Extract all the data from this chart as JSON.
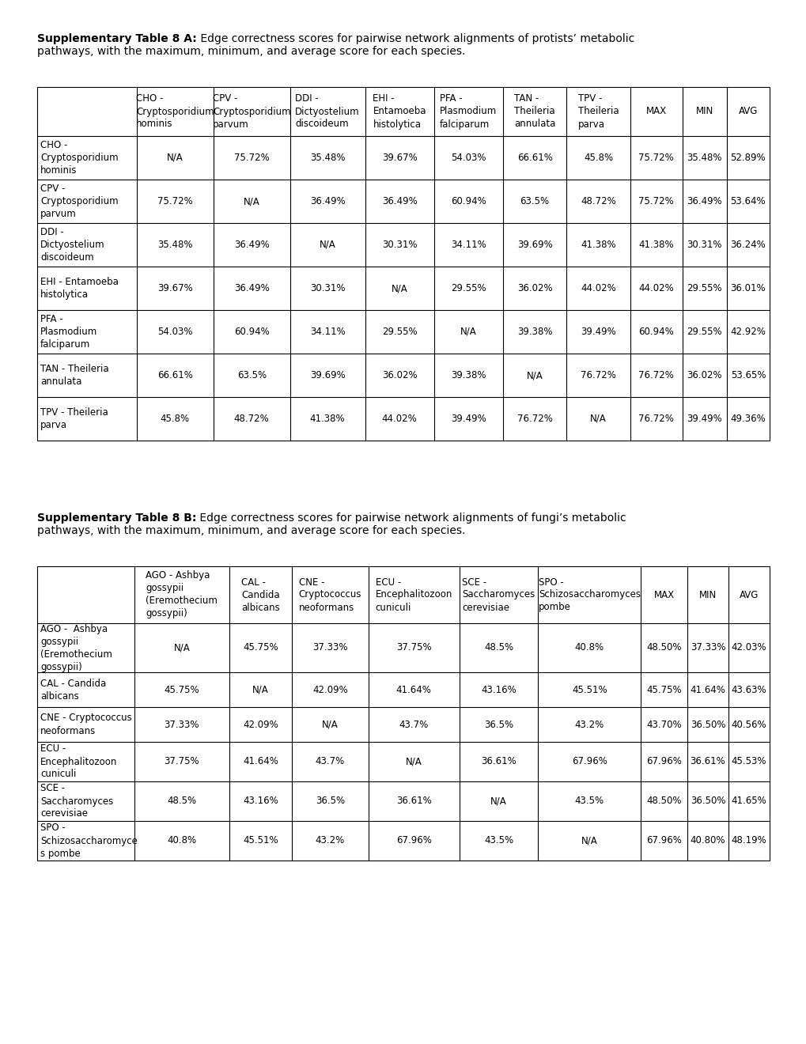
{
  "title_A_line1_bold": "Supplementary Table 8 A:",
  "title_A_line1_rest": " Edge correctness scores for pairwise network alignments of protists’ metabolic",
  "title_A_line2": "pathways, with the maximum, minimum, and average score for each species.",
  "title_B_line1_bold": "Supplementary Table 8 B:",
  "title_B_line1_rest": " Edge correctness scores for pairwise network alignments of fungi’s metabolic",
  "title_B_line2": "pathways, with the maximum, minimum, and average score for each species.",
  "table_A_col_headers": [
    "",
    "CHO -\nCryptosporidium\nhominis",
    "CPV -\nCryptosporidium\nparvum",
    "DDI -\nDictyostelium\ndiscoideum",
    "EHI -\nEntamoeba\nhistolytica",
    "PFA -\nPlasmodium\nfalciparum",
    "TAN -\nTheileria\nannulata",
    "TPV -\nTheileria\nparva",
    "MAX",
    "MIN",
    "AVG"
  ],
  "table_A_row_headers": [
    "CHO -\nCryptosporidium\nhominis",
    "CPV -\nCryptosporidium\nparvum",
    "DDI -\nDictyostelium\ndiscoideum",
    "EHI - Entamoeba\nhistolytica",
    "PFA -\nPlasmodium\nfalciparum",
    "TAN - Theileria\nannulata",
    "TPV - Theileria\nparva"
  ],
  "table_A_data": [
    [
      "N/A",
      "75.72%",
      "35.48%",
      "39.67%",
      "54.03%",
      "66.61%",
      "45.8%",
      "75.72%",
      "35.48%",
      "52.89%"
    ],
    [
      "75.72%",
      "N/A",
      "36.49%",
      "36.49%",
      "60.94%",
      "63.5%",
      "48.72%",
      "75.72%",
      "36.49%",
      "53.64%"
    ],
    [
      "35.48%",
      "36.49%",
      "N/A",
      "30.31%",
      "34.11%",
      "39.69%",
      "41.38%",
      "41.38%",
      "30.31%",
      "36.24%"
    ],
    [
      "39.67%",
      "36.49%",
      "30.31%",
      "N/A",
      "29.55%",
      "36.02%",
      "44.02%",
      "44.02%",
      "29.55%",
      "36.01%"
    ],
    [
      "54.03%",
      "60.94%",
      "34.11%",
      "29.55%",
      "N/A",
      "39.38%",
      "39.49%",
      "60.94%",
      "29.55%",
      "42.92%"
    ],
    [
      "66.61%",
      "63.5%",
      "39.69%",
      "36.02%",
      "39.38%",
      "N/A",
      "76.72%",
      "76.72%",
      "36.02%",
      "53.65%"
    ],
    [
      "45.8%",
      "48.72%",
      "41.38%",
      "44.02%",
      "39.49%",
      "76.72%",
      "N/A",
      "76.72%",
      "39.49%",
      "49.36%"
    ]
  ],
  "table_B_col_headers": [
    "",
    "AGO - Ashbya\ngossypii\n(Eremothecium\ngossypii)",
    "CAL -\nCandida\nalbicans",
    "CNE -\nCryptococcus\nneoformans",
    "ECU -\nEncephalitozoon\ncuniculi",
    "SCE -\nSaccharomyces\ncerevisiae",
    "SPO -\nSchizosaccharomyces\npombe",
    "MAX",
    "MIN",
    "AVG"
  ],
  "table_B_row_headers": [
    "AGO -  Ashbya\ngossypii\n(Eremothecium\ngossypii)",
    "CAL - Candida\nalbicans",
    "CNE - Cryptococcus\nneoformans",
    "ECU -\nEncephalitozoon\ncuniculi",
    "SCE -\nSaccharomyces\ncerevisiae",
    "SPO -\nSchizosaccharomyce\ns pombe"
  ],
  "table_B_data": [
    [
      "N/A",
      "45.75%",
      "37.33%",
      "37.75%",
      "48.5%",
      "40.8%",
      "48.50%",
      "37.33%",
      "42.03%"
    ],
    [
      "45.75%",
      "N/A",
      "42.09%",
      "41.64%",
      "43.16%",
      "45.51%",
      "45.75%",
      "41.64%",
      "43.63%"
    ],
    [
      "37.33%",
      "42.09%",
      "N/A",
      "43.7%",
      "36.5%",
      "43.2%",
      "43.70%",
      "36.50%",
      "40.56%"
    ],
    [
      "37.75%",
      "41.64%",
      "43.7%",
      "N/A",
      "36.61%",
      "67.96%",
      "67.96%",
      "36.61%",
      "45.53%"
    ],
    [
      "48.5%",
      "43.16%",
      "36.5%",
      "36.61%",
      "N/A",
      "43.5%",
      "48.50%",
      "36.50%",
      "41.65%"
    ],
    [
      "40.8%",
      "45.51%",
      "43.2%",
      "67.96%",
      "43.5%",
      "N/A",
      "67.96%",
      "40.80%",
      "48.19%"
    ]
  ],
  "bg_color": "#ffffff",
  "text_color": "#000000",
  "font_size": 8.5,
  "title_font_size": 10.0
}
